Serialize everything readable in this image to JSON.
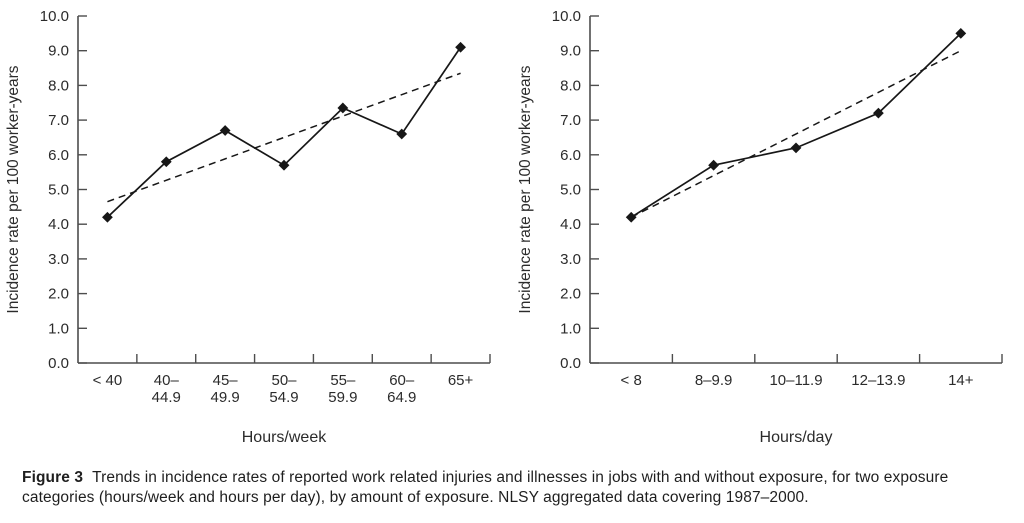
{
  "colors": {
    "data_ink": "#171717",
    "axis_ink": "#4d4d4d",
    "text_ink": "#2b2b2b",
    "background": "#ffffff"
  },
  "caption": {
    "label": "Figure 3",
    "text": "Trends in incidence rates of reported work related injuries and illnesses in jobs with and without exposure, for two exposure categories (hours/week and hours per day), by amount of exposure. NLSY aggregated data covering 1987–2000."
  },
  "chart_data": [
    {
      "type": "line",
      "title": "",
      "xlabel": "Hours/week",
      "ylabel": "Incidence rate per 100 worker-years",
      "ylim": [
        0,
        10
      ],
      "ytick_step": 1,
      "ytick_labels": [
        "0.0",
        "1.0",
        "2.0",
        "3.0",
        "4.0",
        "5.0",
        "6.0",
        "7.0",
        "8.0",
        "9.0",
        "10.0"
      ],
      "categories": [
        "< 40",
        "40–\n44.9",
        "45–\n49.9",
        "50–\n54.9",
        "55–\n59.9",
        "60–\n64.9",
        "65+"
      ],
      "grid": false,
      "legend": "none",
      "series": [
        {
          "name": "incidence-rate",
          "line": "solid",
          "marker": "diamond",
          "values": [
            4.2,
            5.8,
            6.7,
            5.7,
            7.35,
            6.6,
            9.1
          ]
        },
        {
          "name": "linear-trend",
          "line": "dashed",
          "marker": "none",
          "endpoints": [
            4.65,
            8.35
          ]
        }
      ]
    },
    {
      "type": "line",
      "title": "",
      "xlabel": "Hours/day",
      "ylabel": "Incidence rate per 100 worker-years",
      "ylim": [
        0,
        10
      ],
      "ytick_step": 1,
      "ytick_labels": [
        "0.0",
        "1.0",
        "2.0",
        "3.0",
        "4.0",
        "5.0",
        "6.0",
        "7.0",
        "8.0",
        "9.0",
        "10.0"
      ],
      "categories": [
        "< 8",
        "8–9.9",
        "10–11.9",
        "12–13.9",
        "14+"
      ],
      "grid": false,
      "legend": "none",
      "series": [
        {
          "name": "incidence-rate",
          "line": "solid",
          "marker": "diamond",
          "values": [
            4.2,
            5.7,
            6.2,
            7.2,
            9.5
          ]
        },
        {
          "name": "linear-trend",
          "line": "dashed",
          "marker": "none",
          "endpoints": [
            4.2,
            9.0
          ]
        }
      ]
    }
  ]
}
